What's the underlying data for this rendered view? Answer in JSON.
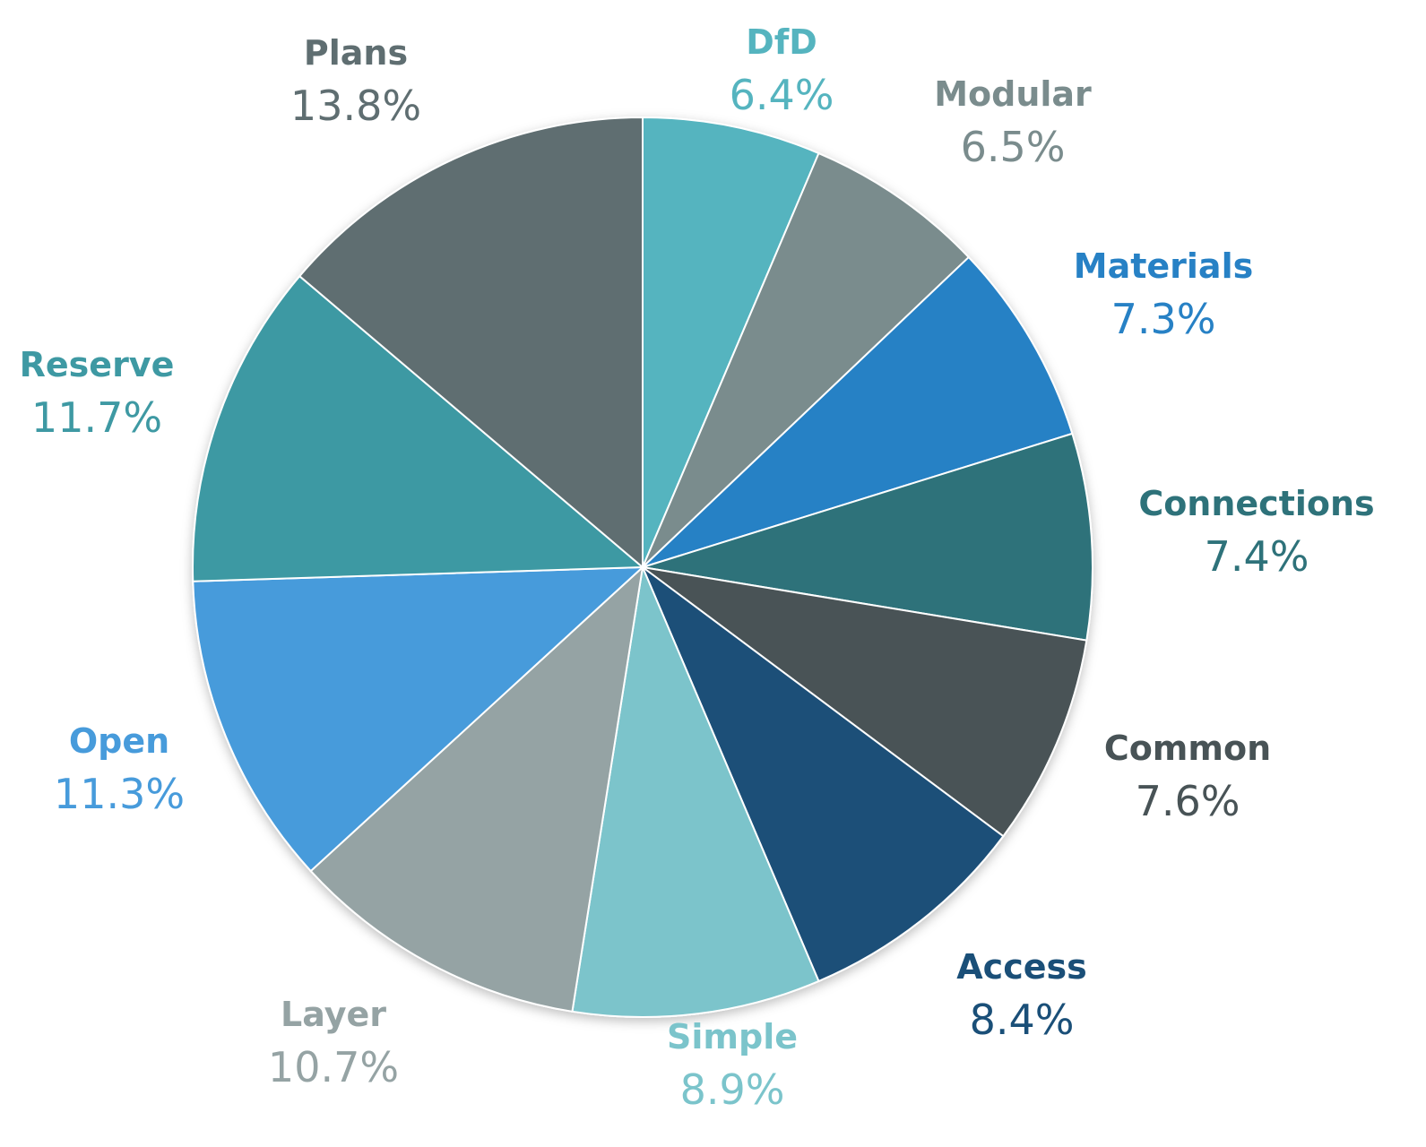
{
  "chart_data": {
    "type": "pie",
    "title": "",
    "start_angle_deg": 0,
    "direction": "clockwise",
    "legend": "none",
    "slices": [
      {
        "name": "DfD",
        "label": "6.4%",
        "value": 6.4,
        "color": "#55b4bf"
      },
      {
        "name": "Modular",
        "label": "6.5%",
        "value": 6.5,
        "color": "#7a8c8d"
      },
      {
        "name": "Materials",
        "label": "7.3%",
        "value": 7.3,
        "color": "#2781c5"
      },
      {
        "name": "Connections",
        "label": "7.4%",
        "value": 7.4,
        "color": "#2e727a"
      },
      {
        "name": "Common",
        "label": "7.6%",
        "value": 7.6,
        "color": "#485356"
      },
      {
        "name": "Access",
        "label": "8.4%",
        "value": 8.4,
        "color": "#1a4f78"
      },
      {
        "name": "Simple",
        "label": "8.9%",
        "value": 8.9,
        "color": "#7bc4cb"
      },
      {
        "name": "Layer",
        "label": "10.7%",
        "value": 10.7,
        "color": "#95a3a4"
      },
      {
        "name": "Open",
        "label": "11.3%",
        "value": 11.3,
        "color": "#479bdb"
      },
      {
        "name": "Reserve",
        "label": "11.7%",
        "value": 11.7,
        "color": "#3e99a3"
      },
      {
        "name": "Plans",
        "label": "13.8%",
        "value": 13.8,
        "color": "#5f6e71"
      }
    ]
  }
}
